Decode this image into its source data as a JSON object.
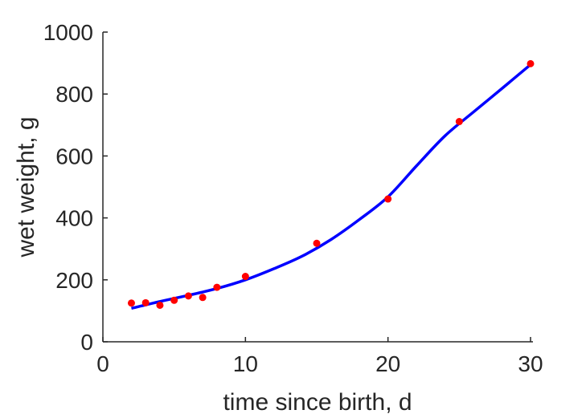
{
  "chart_data": {
    "type": "scatter",
    "title": "",
    "xlabel": "time since birth, d",
    "ylabel": "wet weight, g",
    "xlim": [
      0,
      30
    ],
    "ylim": [
      0,
      1000
    ],
    "x_ticks": [
      "0",
      "10",
      "20",
      "30"
    ],
    "y_ticks": [
      "0",
      "200",
      "400",
      "600",
      "800",
      "1000"
    ],
    "grid": false,
    "legend": "none",
    "series": [
      {
        "kind": "points",
        "color": "#ff0000",
        "x": [
          2,
          3,
          4,
          5,
          6,
          7,
          8,
          10,
          15,
          20,
          25,
          30
        ],
        "y": [
          125,
          126,
          118,
          134,
          148,
          143,
          176,
          211,
          318,
          461,
          711,
          898
        ]
      },
      {
        "kind": "line",
        "color": "#0000ff",
        "x": [
          2,
          4,
          6,
          8,
          10,
          12,
          14,
          16,
          18,
          20,
          22,
          24,
          26,
          28,
          30
        ],
        "y": [
          108,
          130,
          150,
          172,
          200,
          236,
          277,
          330,
          395,
          468,
          568,
          665,
          742,
          818,
          895
        ]
      }
    ]
  }
}
